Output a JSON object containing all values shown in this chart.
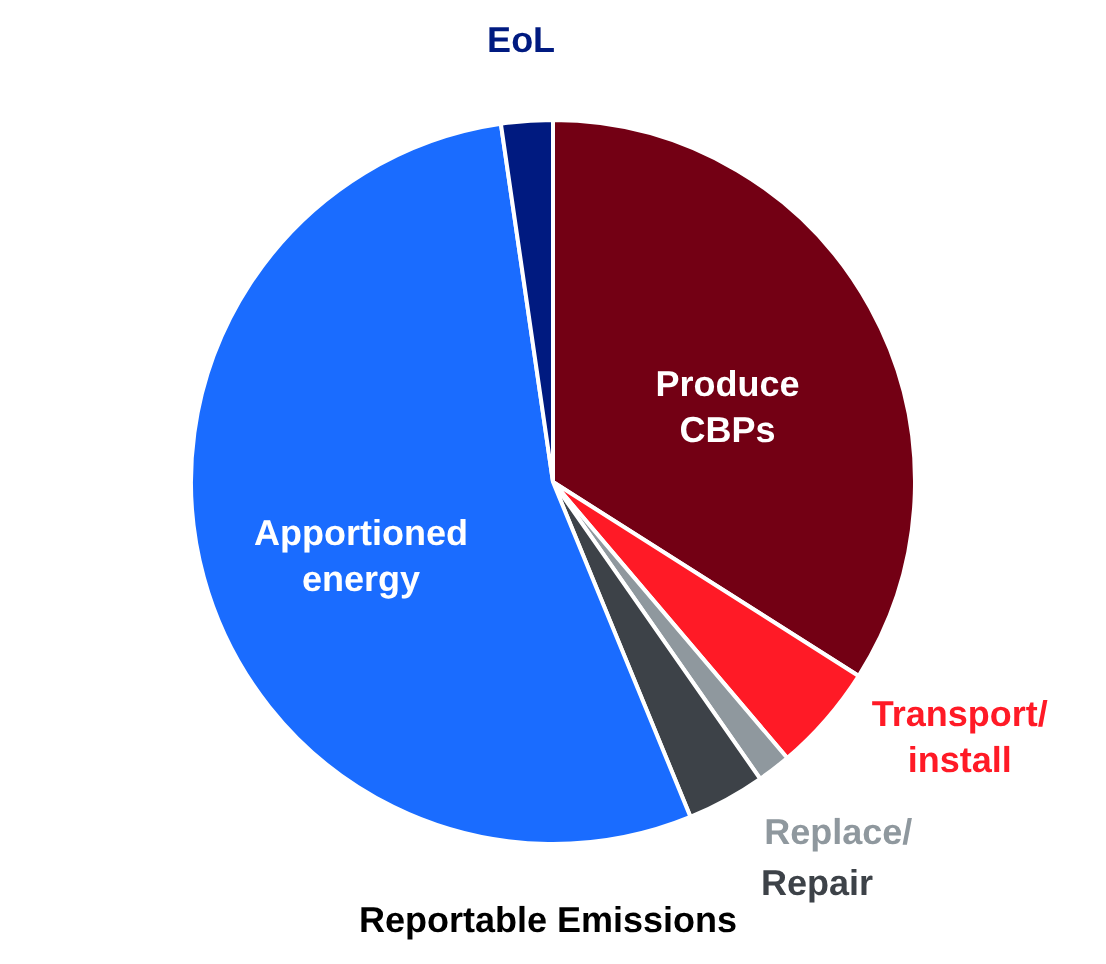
{
  "chart_data": {
    "type": "pie",
    "title": "Reportable Emissions",
    "categories": [
      "Produce\nCBPs",
      "Transport/\ninstall",
      "Replace/",
      "Repair",
      "Apportioned\nenergy",
      "EoL"
    ],
    "values": [
      34,
      4.8,
      1.5,
      3.5,
      53.9,
      2.3
    ],
    "colors": [
      "#730014",
      "#ff1a26",
      "#8f989e",
      "#3d4248",
      "#1a6cff",
      "#001a80"
    ]
  }
}
